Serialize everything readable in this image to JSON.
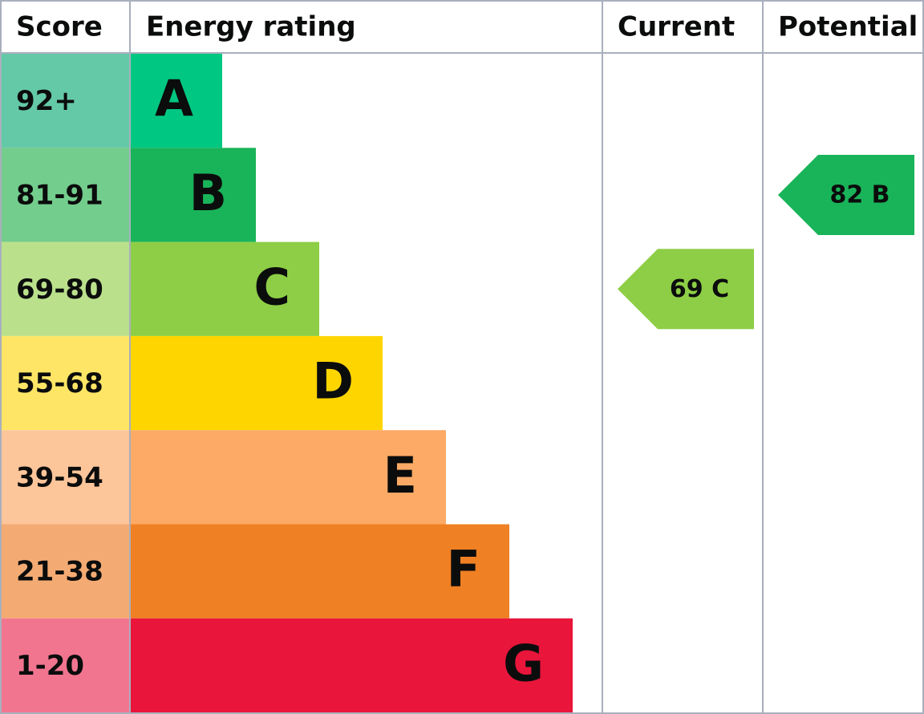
{
  "header": {
    "score": "Score",
    "rating": "Energy rating",
    "current": "Current",
    "potential": "Potential"
  },
  "rows": [
    {
      "score": "92+",
      "band": "A",
      "color": "#00c781",
      "score_color": "#64c9a6"
    },
    {
      "score": "81-91",
      "band": "B",
      "color": "#19b459",
      "score_color": "#73cd8d"
    },
    {
      "score": "69-80",
      "band": "C",
      "color": "#8dce46",
      "score_color": "#bbe08c"
    },
    {
      "score": "55-68",
      "band": "D",
      "color": "#ffd500",
      "score_color": "#ffe566"
    },
    {
      "score": "39-54",
      "band": "E",
      "color": "#fcaa65",
      "score_color": "#fdc59a"
    },
    {
      "score": "21-38",
      "band": "F",
      "color": "#ef8023",
      "score_color": "#f3ab73"
    },
    {
      "score": "1-20",
      "band": "G",
      "color": "#e9153b",
      "score_color": "#f27590"
    }
  ],
  "current": {
    "label": "69 C",
    "band": "C",
    "color": "#8dce46"
  },
  "potential": {
    "label": "82 B",
    "band": "B",
    "color": "#19b459"
  }
}
